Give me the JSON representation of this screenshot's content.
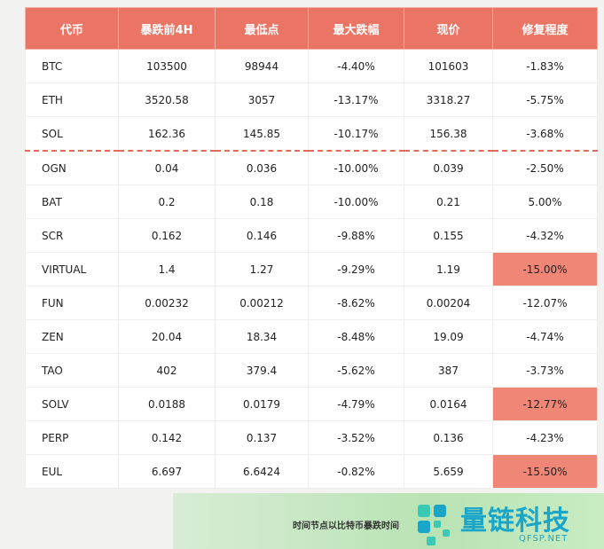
{
  "table": {
    "headers": [
      "代币",
      "暴跌前4H",
      "最低点",
      "最大跌幅",
      "现价",
      "修复程度"
    ],
    "rows": [
      [
        "BTC",
        "103500",
        "98944",
        "-4.40%",
        "101603",
        "-1.83%"
      ],
      [
        "ETH",
        "3520.58",
        "3057",
        "-13.17%",
        "3318.27",
        "-5.75%"
      ],
      [
        "SOL",
        "162.36",
        "145.85",
        "-10.17%",
        "156.38",
        "-3.68%"
      ],
      [
        "OGN",
        "0.04",
        "0.036",
        "-10.00%",
        "0.039",
        "-2.50%"
      ],
      [
        "BAT",
        "0.2",
        "0.18",
        "-10.00%",
        "0.21",
        "5.00%"
      ],
      [
        "SCR",
        "0.162",
        "0.146",
        "-9.88%",
        "0.155",
        "-4.32%"
      ],
      [
        "VIRTUAL",
        "1.4",
        "1.27",
        "-9.29%",
        "1.19",
        "-15.00%"
      ],
      [
        "FUN",
        "0.00232",
        "0.00212",
        "-8.62%",
        "0.00204",
        "-12.07%"
      ],
      [
        "ZEN",
        "20.04",
        "18.34",
        "-8.48%",
        "19.09",
        "-4.74%"
      ],
      [
        "TAO",
        "402",
        "379.4",
        "-5.62%",
        "387",
        "-3.73%"
      ],
      [
        "SOLV",
        "0.0188",
        "0.0179",
        "-4.79%",
        "0.0164",
        "-12.77%"
      ],
      [
        "PERP",
        "0.142",
        "0.137",
        "-3.52%",
        "0.136",
        "-4.23%"
      ],
      [
        "EUL",
        "6.697",
        "6.6424",
        "-0.82%",
        "5.659",
        "-15.50%"
      ]
    ],
    "highlighted_cells": [
      [
        6,
        5
      ],
      [
        10,
        5
      ],
      [
        12,
        5
      ]
    ]
  },
  "footer": {
    "note": "时间节点以比特币暴跌时间",
    "brand": "量链科技",
    "site": "QFSP.NET"
  }
}
